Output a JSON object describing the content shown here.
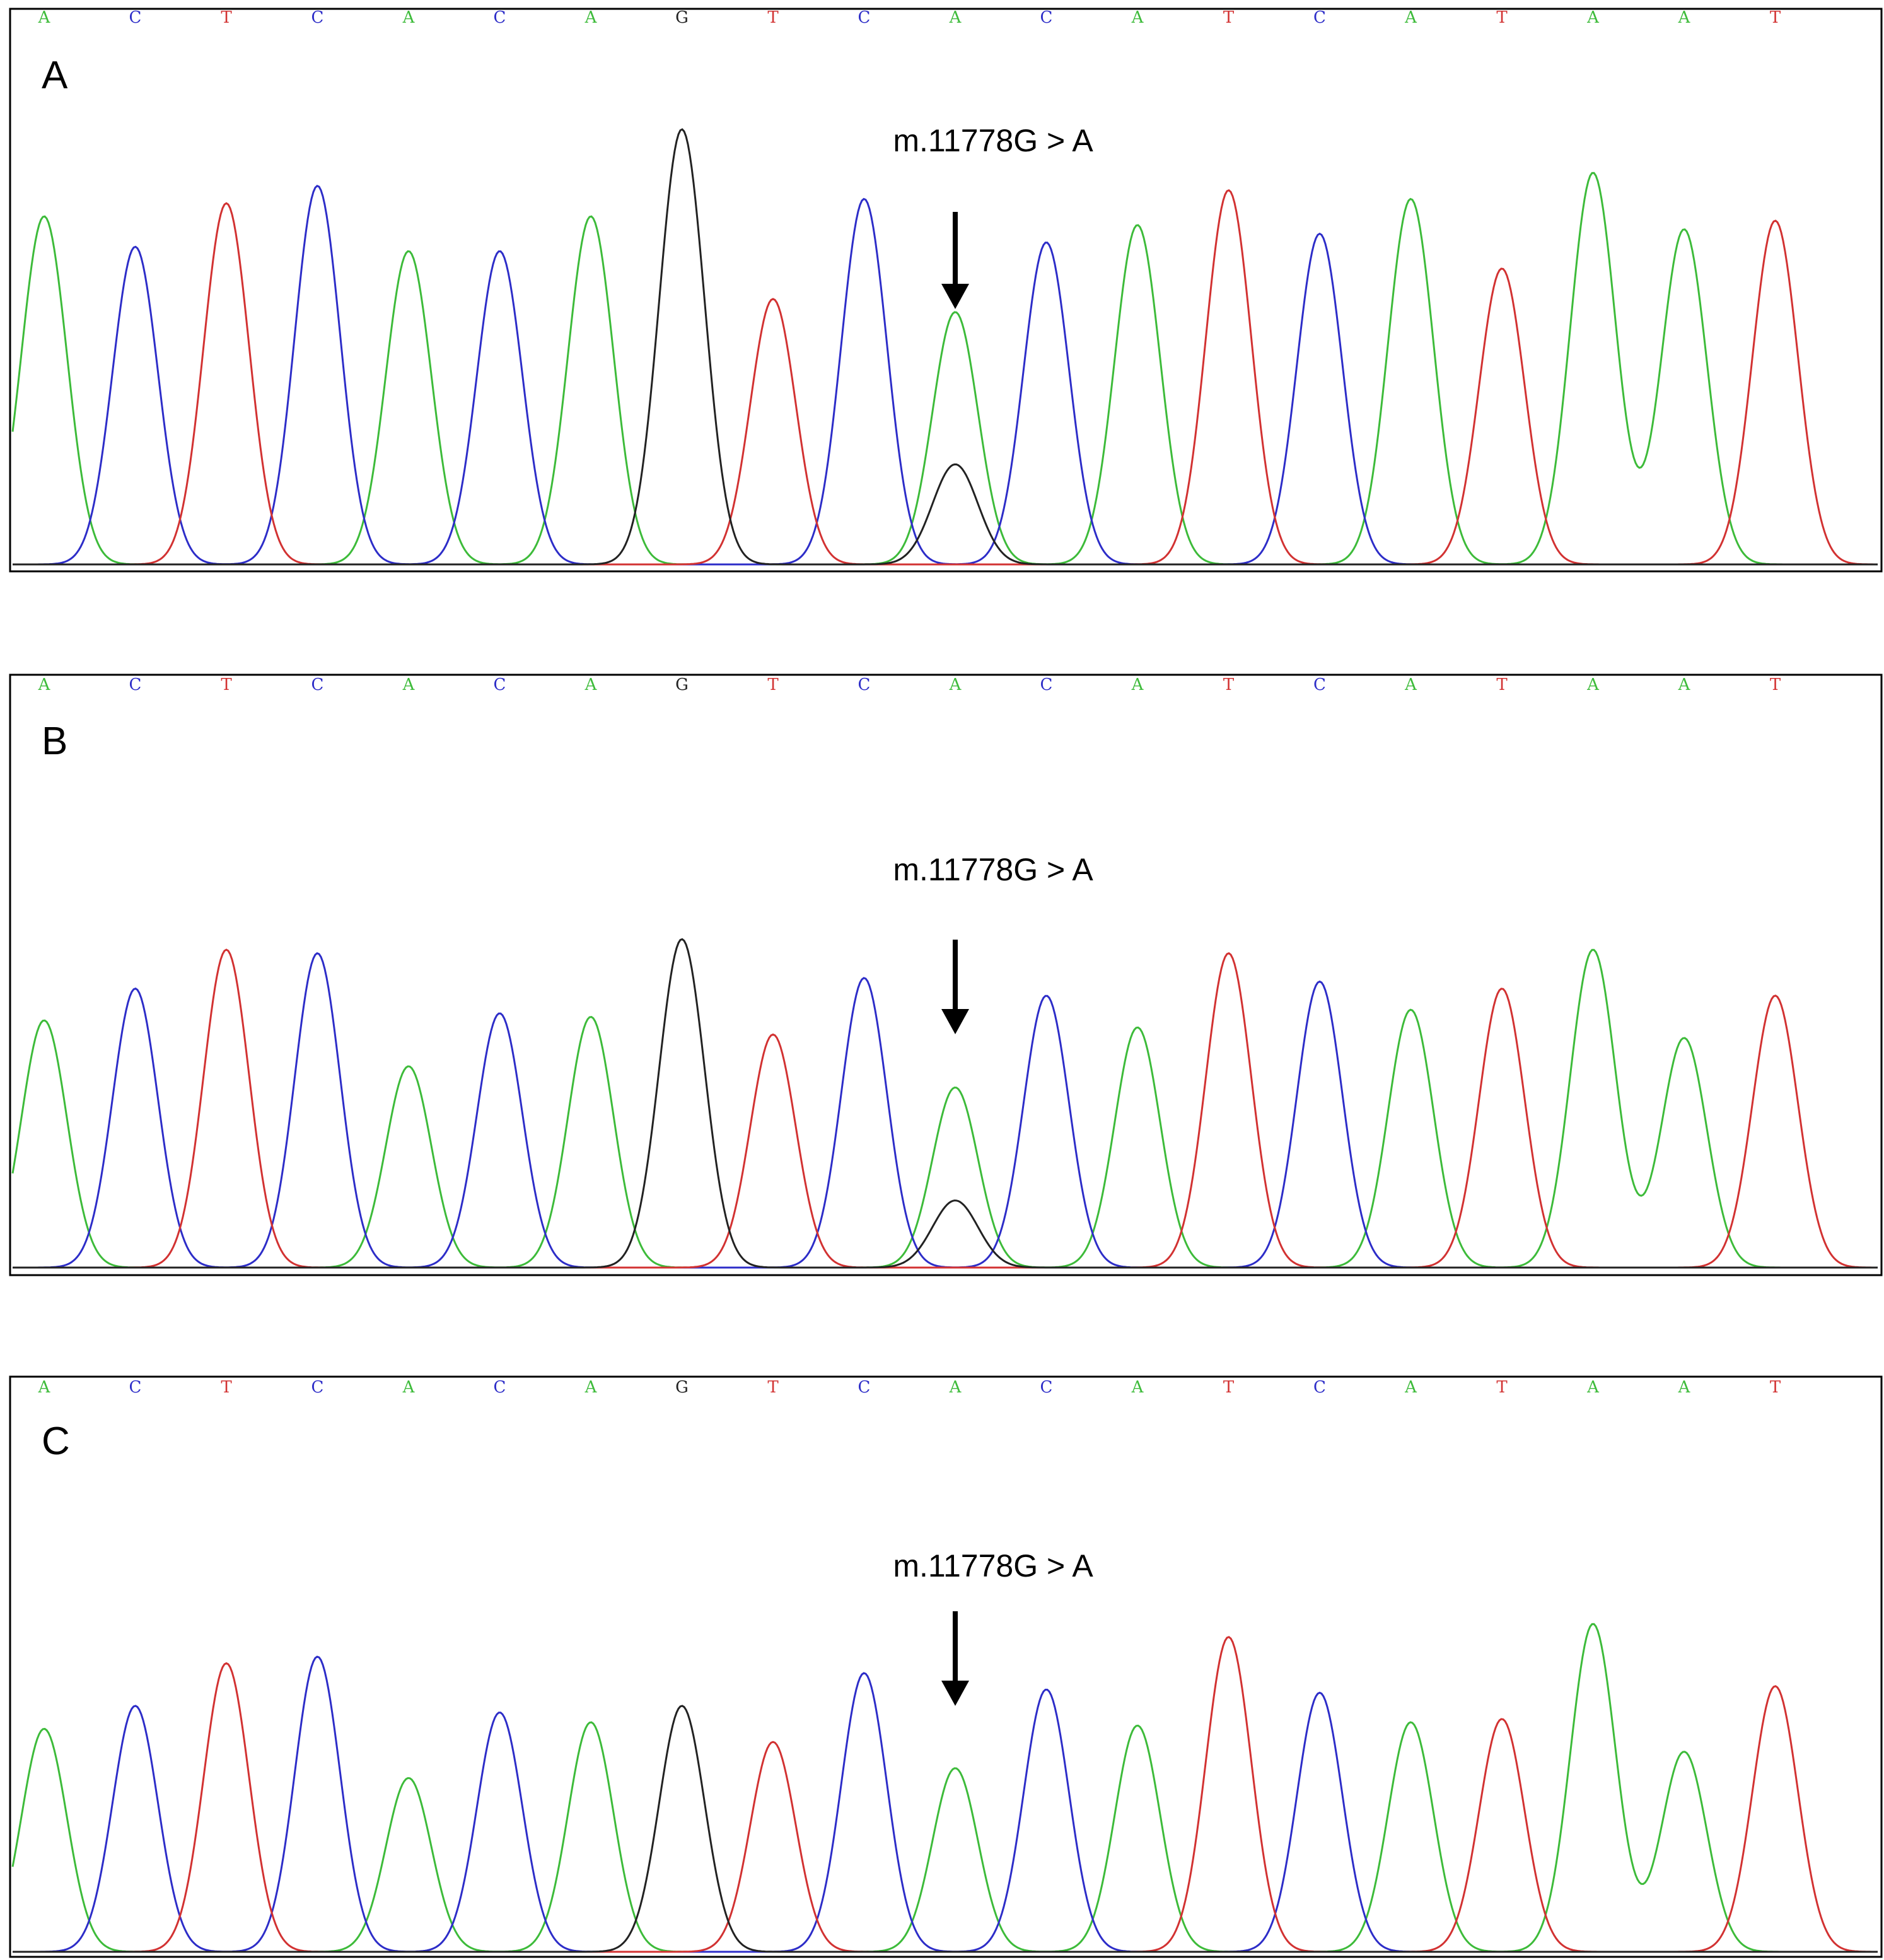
{
  "chart_data": [
    {
      "type": "line",
      "panel_label": "A",
      "annotation": "m.11778G > A",
      "annotated_position": 10,
      "sequence": [
        "A",
        "C",
        "T",
        "C",
        "A",
        "C",
        "A",
        "G",
        "T",
        "C",
        "A",
        "C",
        "A",
        "T",
        "C",
        "A",
        "T",
        "A",
        "A",
        "T"
      ],
      "ylim": [
        0,
        100
      ],
      "series": [
        {
          "base": "A",
          "color": "#3dbb3a",
          "peaks": [
            [
              0,
              80
            ],
            [
              4,
              72
            ],
            [
              6,
              80
            ],
            [
              10,
              58
            ],
            [
              12,
              78
            ],
            [
              15,
              84
            ],
            [
              17,
              90
            ],
            [
              18,
              77
            ]
          ]
        },
        {
          "base": "C",
          "color": "#2d2dc8",
          "peaks": [
            [
              1,
              73
            ],
            [
              3,
              87
            ],
            [
              5,
              72
            ],
            [
              9,
              84
            ],
            [
              11,
              74
            ],
            [
              14,
              76
            ]
          ]
        },
        {
          "base": "T",
          "color": "#d23232",
          "peaks": [
            [
              2,
              83
            ],
            [
              8,
              61
            ],
            [
              13,
              86
            ],
            [
              16,
              68
            ],
            [
              19,
              79
            ]
          ]
        },
        {
          "base": "G",
          "color": "#222222",
          "peaks": [
            [
              7,
              100
            ],
            [
              10,
              23
            ]
          ]
        }
      ]
    },
    {
      "type": "line",
      "panel_label": "B",
      "annotation": "m.11778G > A",
      "annotated_position": 10,
      "sequence": [
        "A",
        "C",
        "T",
        "C",
        "A",
        "C",
        "A",
        "G",
        "T",
        "C",
        "A",
        "C",
        "A",
        "T",
        "C",
        "A",
        "T",
        "A",
        "A",
        "T"
      ],
      "ylim": [
        0,
        100
      ],
      "series": [
        {
          "base": "A",
          "color": "#3dbb3a",
          "peaks": [
            [
              0,
              70
            ],
            [
              4,
              57
            ],
            [
              6,
              71
            ],
            [
              10,
              51
            ],
            [
              12,
              68
            ],
            [
              15,
              73
            ],
            [
              17,
              90
            ],
            [
              18,
              65
            ]
          ]
        },
        {
          "base": "C",
          "color": "#2d2dc8",
          "peaks": [
            [
              1,
              79
            ],
            [
              3,
              89
            ],
            [
              5,
              72
            ],
            [
              9,
              82
            ],
            [
              11,
              77
            ],
            [
              14,
              81
            ]
          ]
        },
        {
          "base": "T",
          "color": "#d23232",
          "peaks": [
            [
              2,
              90
            ],
            [
              8,
              66
            ],
            [
              13,
              89
            ],
            [
              16,
              79
            ],
            [
              19,
              77
            ]
          ]
        },
        {
          "base": "G",
          "color": "#222222",
          "peaks": [
            [
              7,
              93
            ],
            [
              10,
              19
            ]
          ]
        }
      ]
    },
    {
      "type": "line",
      "panel_label": "C",
      "annotation": "m.11778G > A",
      "annotated_position": 10,
      "sequence": [
        "A",
        "C",
        "T",
        "C",
        "A",
        "C",
        "A",
        "G",
        "T",
        "C",
        "A",
        "C",
        "A",
        "T",
        "C",
        "A",
        "T",
        "A",
        "A",
        "T"
      ],
      "ylim": [
        0,
        100
      ],
      "series": [
        {
          "base": "A",
          "color": "#3dbb3a",
          "peaks": [
            [
              0,
              68
            ],
            [
              4,
              53
            ],
            [
              6,
              70
            ],
            [
              10,
              56
            ],
            [
              12,
              69
            ],
            [
              15,
              70
            ],
            [
              17,
              100
            ],
            [
              18,
              61
            ]
          ]
        },
        {
          "base": "C",
          "color": "#2d2dc8",
          "peaks": [
            [
              1,
              75
            ],
            [
              3,
              90
            ],
            [
              5,
              73
            ],
            [
              9,
              85
            ],
            [
              11,
              80
            ],
            [
              14,
              79
            ]
          ]
        },
        {
          "base": "T",
          "color": "#d23232",
          "peaks": [
            [
              2,
              88
            ],
            [
              8,
              64
            ],
            [
              13,
              96
            ],
            [
              16,
              71
            ],
            [
              19,
              81
            ]
          ]
        },
        {
          "base": "G",
          "color": "#222222",
          "peaks": [
            [
              7,
              75
            ]
          ]
        }
      ]
    }
  ]
}
